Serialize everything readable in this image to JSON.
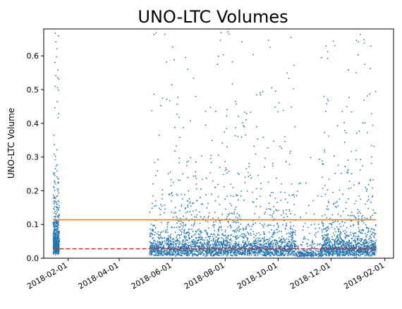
{
  "chart_data": {
    "type": "scatter",
    "title": "UNO-LTC Volumes",
    "xlabel": "",
    "ylabel": "UNO-LTC Volume",
    "x_type": "date",
    "xlim": [
      "2018-01-04",
      "2019-02-11"
    ],
    "ylim": [
      0,
      0.68
    ],
    "x_ticks": [
      "2018-02-01",
      "2018-04-01",
      "2018-06-01",
      "2018-08-01",
      "2018-10-01",
      "2018-12-01",
      "2019-02-01"
    ],
    "y_ticks": [
      0.0,
      0.1,
      0.2,
      0.3,
      0.4,
      0.5,
      0.6
    ],
    "grid": false,
    "colors": {
      "points": "#1f77b4",
      "mean_line": "#ff7f0e",
      "median_line": "#d62728"
    },
    "reference_lines": [
      {
        "kind": "mean",
        "y": 0.114,
        "x_start": "2018-01-15",
        "x_end": "2019-01-22",
        "color": "#ff7f0e",
        "style": "solid"
      },
      {
        "kind": "median",
        "y": 0.028,
        "x_start": "2018-01-15",
        "x_end": "2019-01-22",
        "color": "#d62728",
        "style": "dashed"
      }
    ],
    "series": [
      {
        "marker": "point",
        "color": "#1f77b4",
        "clusters": [
          {
            "x_start": "2018-01-15",
            "x_end": "2018-01-22",
            "y_median": 0.05,
            "y_max": 0.68,
            "count": 520
          },
          {
            "x_start": "2018-05-06",
            "x_end": "2018-10-21",
            "y_median": 0.03,
            "y_max": 0.68,
            "count": 2600
          },
          {
            "x_start": "2018-10-21",
            "x_end": "2018-11-20",
            "y_median": 0.015,
            "y_max": 0.45,
            "count": 250
          },
          {
            "x_start": "2018-11-20",
            "x_end": "2019-01-22",
            "y_median": 0.03,
            "y_max": 0.68,
            "count": 1200
          }
        ]
      }
    ]
  }
}
